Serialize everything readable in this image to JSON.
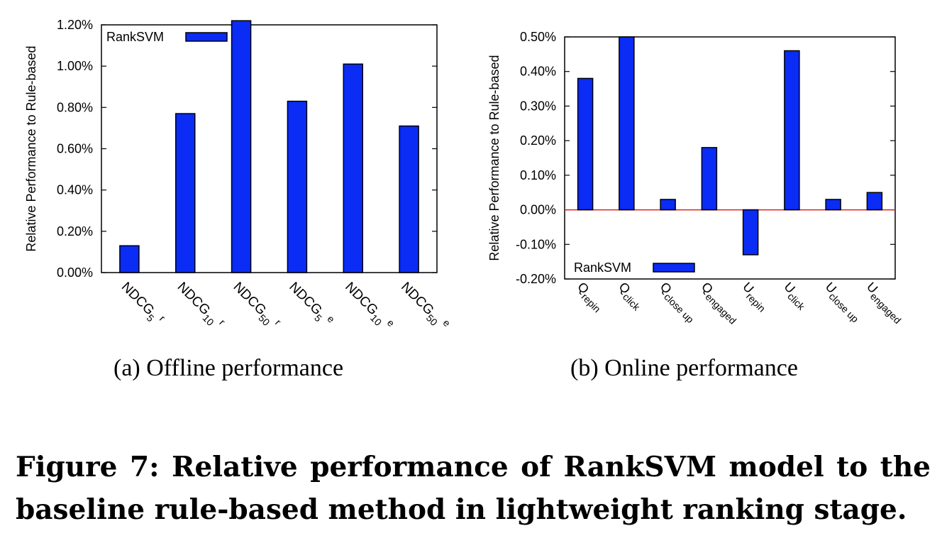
{
  "bar_color": "#0a2cf5",
  "zero_line_color": "#e02020",
  "chart_data": [
    {
      "type": "bar",
      "ylabel": "Relative Performance to Rule-based",
      "ylim": [
        0,
        1.2
      ],
      "yticks": [
        "0.00%",
        "0.20%",
        "0.40%",
        "0.60%",
        "0.80%",
        "1.00%",
        "1.20%"
      ],
      "legend": "RankSVM",
      "legend_position": "top-left",
      "categories": [
        {
          "base": "NDCG",
          "sub": "5",
          "sup": "r"
        },
        {
          "base": "NDCG",
          "sub": "10",
          "sup": "r"
        },
        {
          "base": "NDCG",
          "sub": "50",
          "sup": "r"
        },
        {
          "base": "NDCG",
          "sub": "5",
          "sup": "e"
        },
        {
          "base": "NDCG",
          "sub": "10",
          "sup": "e"
        },
        {
          "base": "NDCG",
          "sub": "50",
          "sup": "e"
        }
      ],
      "values": [
        0.13,
        0.77,
        1.22,
        0.83,
        1.01,
        0.71
      ],
      "grid": false
    },
    {
      "type": "bar",
      "ylabel": "Relative Performance to Rule-based",
      "ylim": [
        -0.2,
        0.5
      ],
      "yticks": [
        "-0.20%",
        "-0.10%",
        "0.00%",
        "0.10%",
        "0.20%",
        "0.30%",
        "0.40%",
        "0.50%"
      ],
      "legend": "RankSVM",
      "legend_position": "bottom-left",
      "categories": [
        {
          "base": "Q",
          "sub": "repin"
        },
        {
          "base": "Q",
          "sub": "click"
        },
        {
          "base": "Q",
          "sub": "close up"
        },
        {
          "base": "Q",
          "sub": "engaged"
        },
        {
          "base": "U",
          "sub": "repin"
        },
        {
          "base": "U",
          "sub": "click"
        },
        {
          "base": "U",
          "sub": "close up"
        },
        {
          "base": "U",
          "sub": "engaged"
        }
      ],
      "values": [
        0.38,
        0.5,
        0.03,
        0.18,
        -0.13,
        0.46,
        0.03,
        0.05
      ],
      "grid": false
    }
  ],
  "captions": {
    "a": "(a)  Offline performance",
    "b": "(b)  Online performance",
    "figure_line1": "Figure 7: Relative performance of RankSVM model to the",
    "figure_line2": "baseline rule-based method in lightweight ranking stage."
  }
}
